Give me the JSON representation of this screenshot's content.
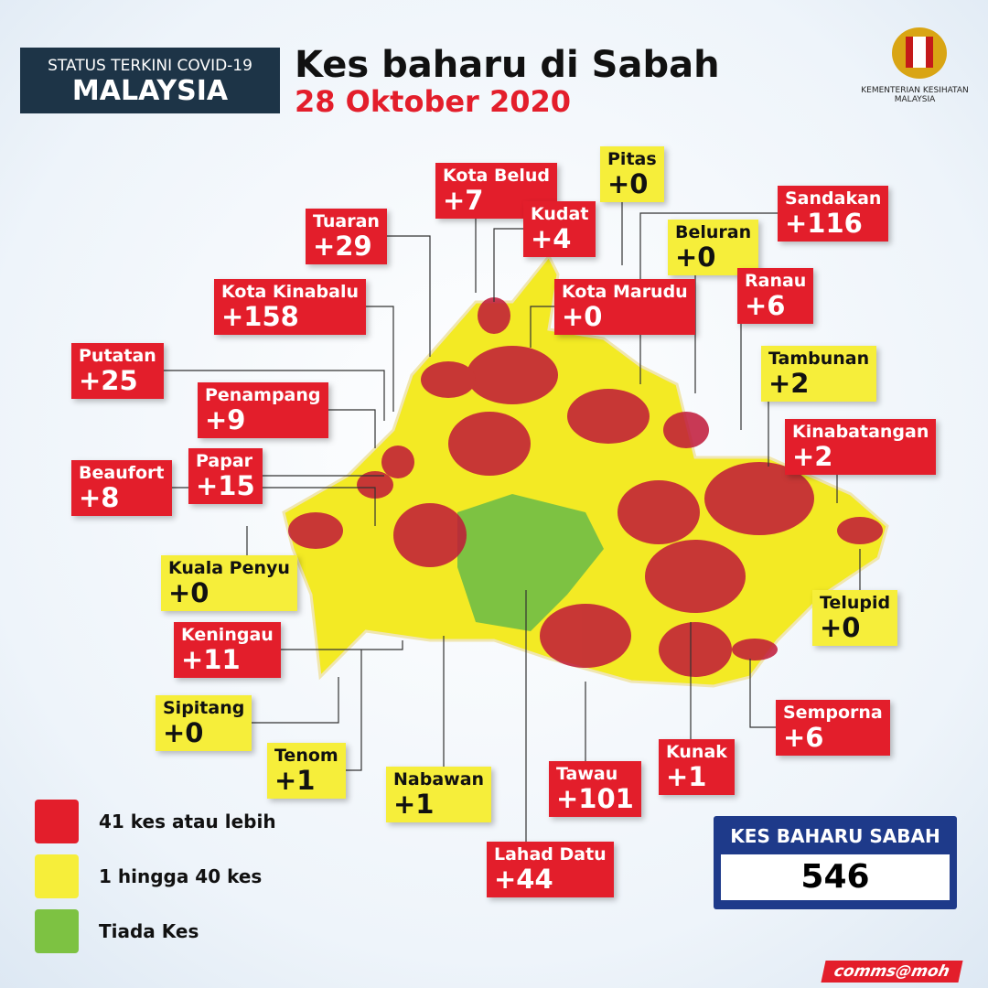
{
  "header": {
    "badge_line1": "STATUS TERKINI COVID-19",
    "badge_line2": "MALAYSIA",
    "title": "Kes baharu di Sabah",
    "date": "28 Oktober 2020",
    "ministry_line1": "KEMENTERIAN KESIHATAN",
    "ministry_line2": "MALAYSIA"
  },
  "districts": [
    {
      "name": "Kota Belud",
      "value": "+7",
      "color": "#e31e2b"
    },
    {
      "name": "Pitas",
      "value": "+0",
      "color": "#f6ee3a"
    },
    {
      "name": "Tuaran",
      "value": "+29",
      "color": "#e31e2b"
    },
    {
      "name": "Kudat",
      "value": "+4",
      "color": "#e31e2b"
    },
    {
      "name": "Sandakan",
      "value": "+116",
      "color": "#e31e2b"
    },
    {
      "name": "Beluran",
      "value": "+0",
      "color": "#f6ee3a"
    },
    {
      "name": "Kota Kinabalu",
      "value": "+158",
      "color": "#e31e2b"
    },
    {
      "name": "Kota Marudu",
      "value": "+0",
      "color": "#e31e2b"
    },
    {
      "name": "Ranau",
      "value": "+6",
      "color": "#e31e2b"
    },
    {
      "name": "Putatan",
      "value": "+25",
      "color": "#e31e2b"
    },
    {
      "name": "Tambunan",
      "value": "+2",
      "color": "#f6ee3a"
    },
    {
      "name": "Penampang",
      "value": "+9",
      "color": "#e31e2b"
    },
    {
      "name": "Kinabatangan",
      "value": "+2",
      "color": "#e31e2b"
    },
    {
      "name": "Beaufort",
      "value": "+8",
      "color": "#e31e2b"
    },
    {
      "name": "Papar",
      "value": "+15",
      "color": "#e31e2b"
    },
    {
      "name": "Kuala Penyu",
      "value": "+0",
      "color": "#f6ee3a"
    },
    {
      "name": "Telupid",
      "value": "+0",
      "color": "#f6ee3a"
    },
    {
      "name": "Keningau",
      "value": "+11",
      "color": "#e31e2b"
    },
    {
      "name": "Sipitang",
      "value": "+0",
      "color": "#f6ee3a"
    },
    {
      "name": "Semporna",
      "value": "+6",
      "color": "#e31e2b"
    },
    {
      "name": "Tenom",
      "value": "+1",
      "color": "#f6ee3a"
    },
    {
      "name": "Kunak",
      "value": "+1",
      "color": "#e31e2b"
    },
    {
      "name": "Nabawan",
      "value": "+1",
      "color": "#f6ee3a"
    },
    {
      "name": "Tawau",
      "value": "+101",
      "color": "#e31e2b"
    },
    {
      "name": "Lahad Datu",
      "value": "+44",
      "color": "#e31e2b"
    }
  ],
  "legend": [
    {
      "label": "41 kes atau lebih",
      "color": "#e31e2b"
    },
    {
      "label": "1 hingga 40 kes",
      "color": "#f6ee3a"
    },
    {
      "label": "Tiada Kes",
      "color": "#7dc242"
    }
  ],
  "total": {
    "label": "KES BAHARU SABAH",
    "value": "546"
  },
  "footer": "comms@moh"
}
